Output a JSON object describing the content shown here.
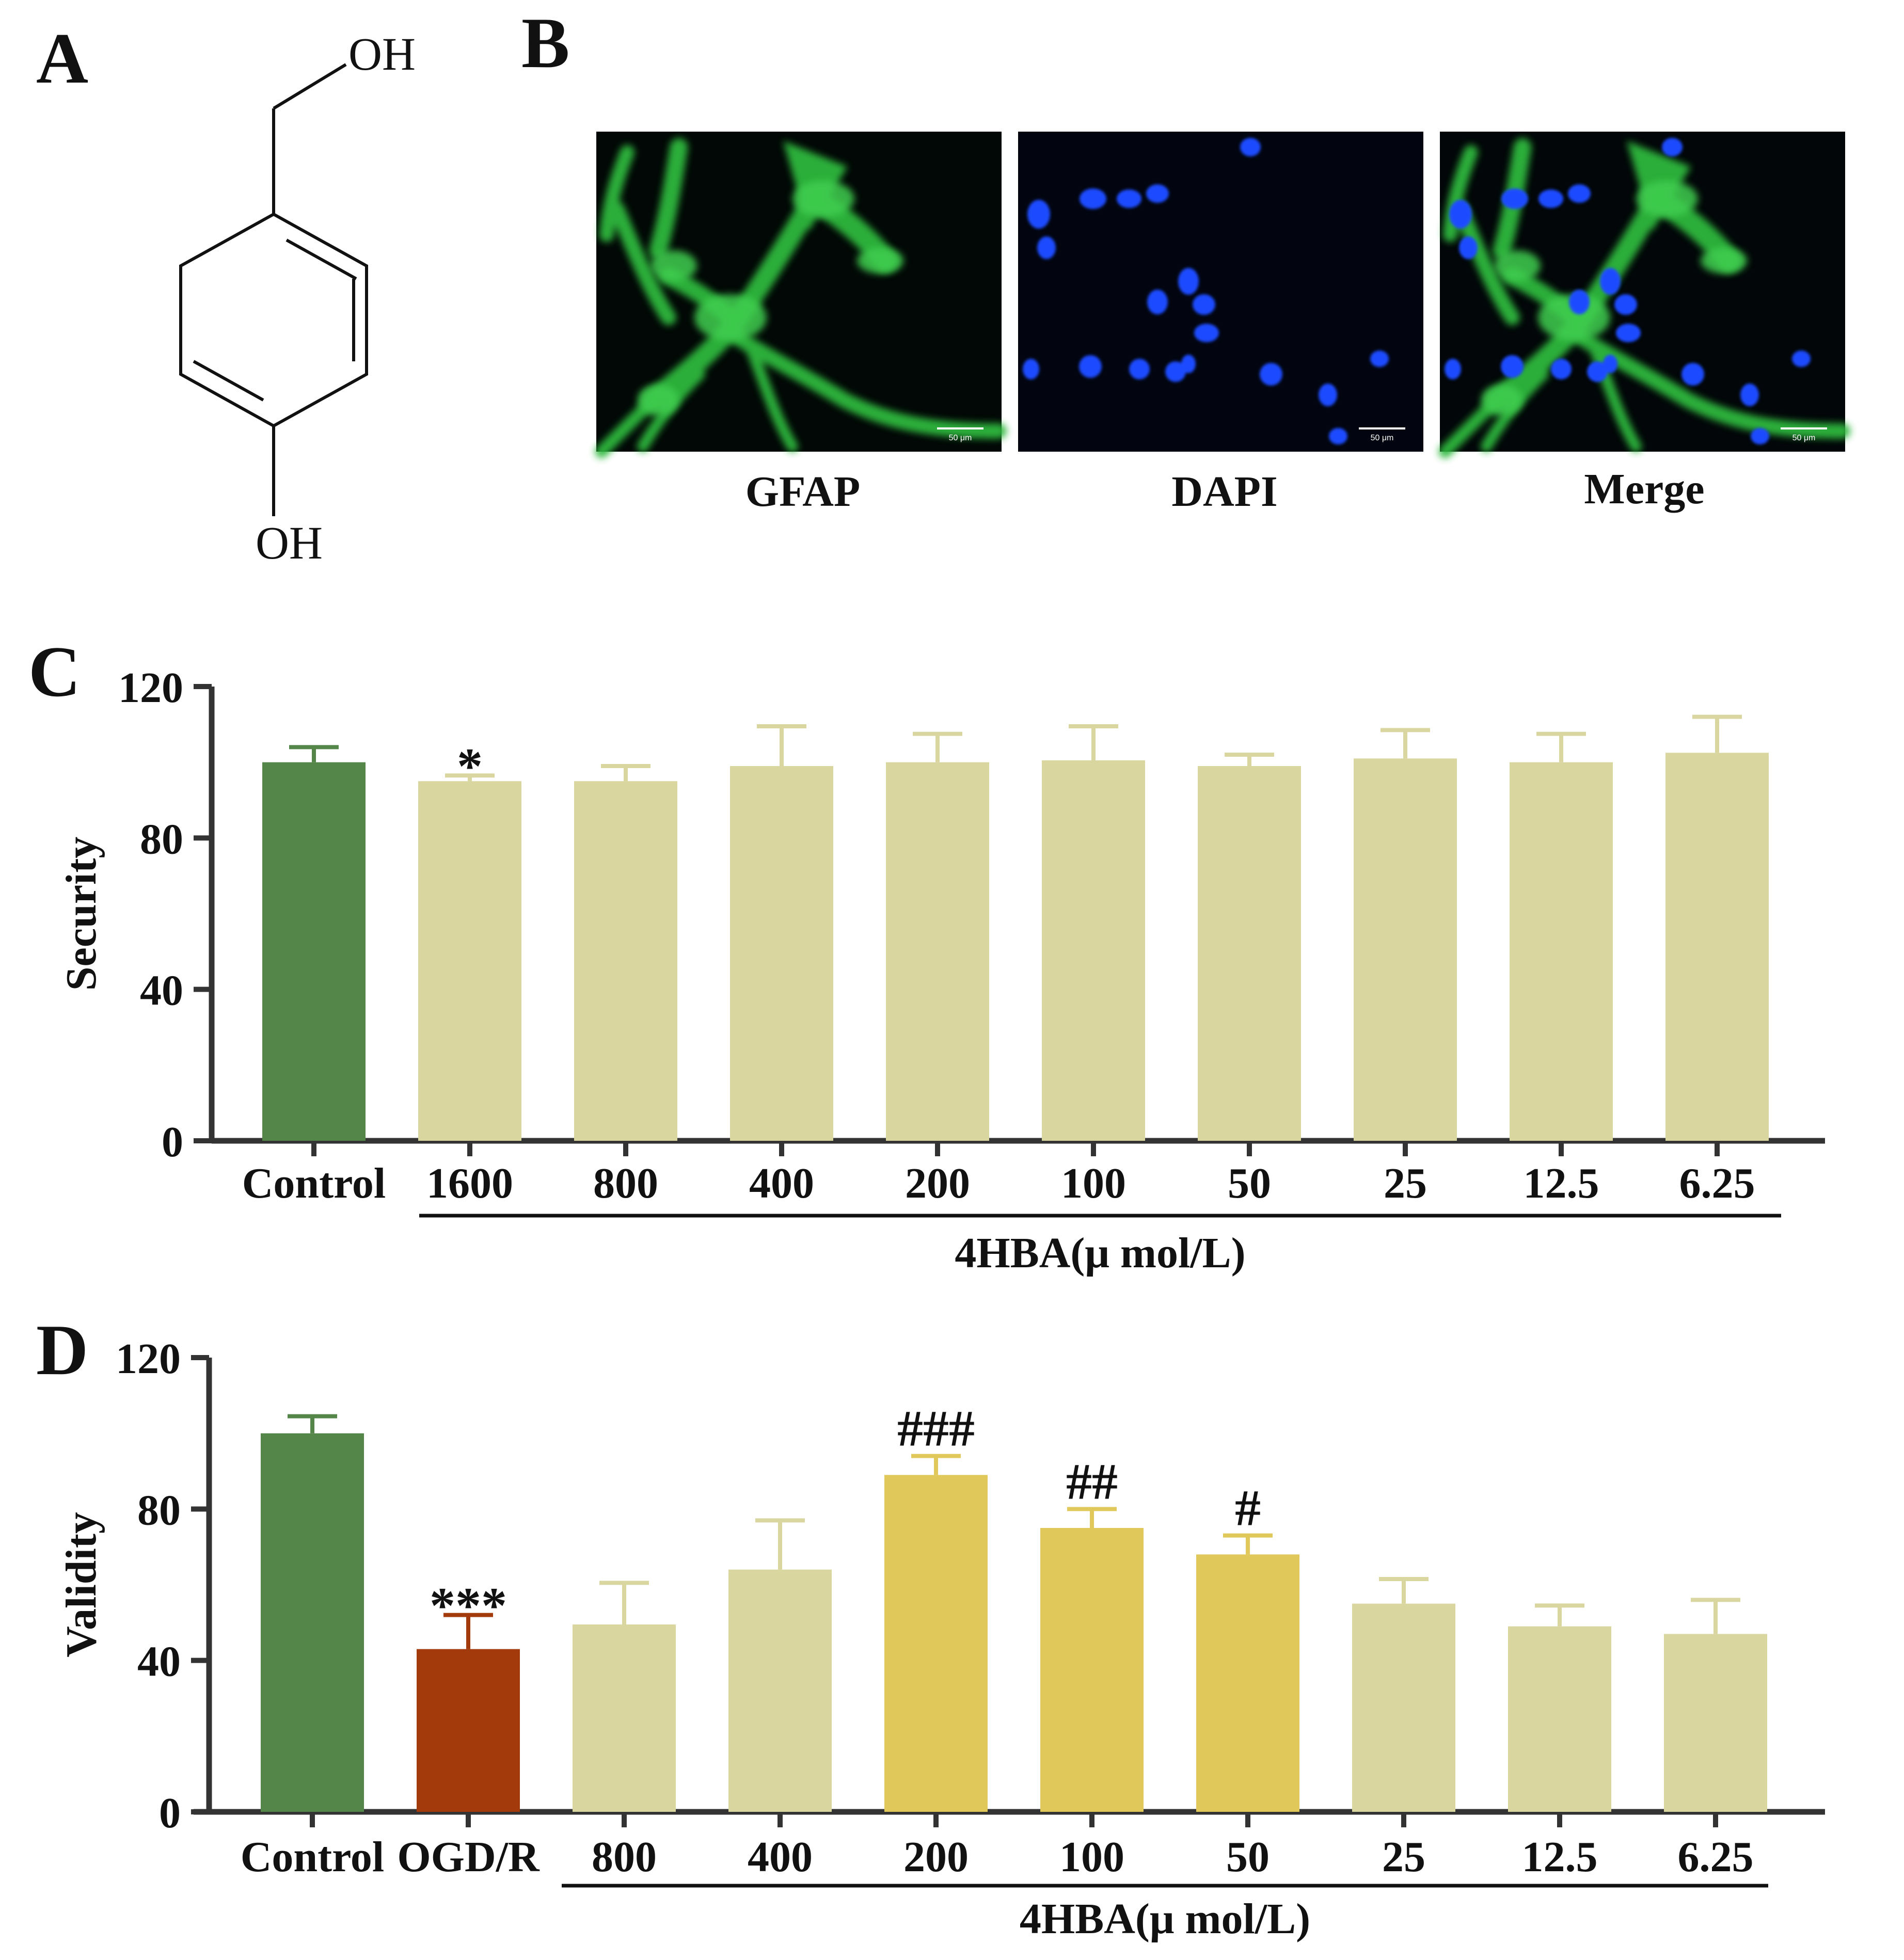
{
  "panels": {
    "a": "A",
    "b": "B",
    "c": "C",
    "d": "D"
  },
  "structure": {
    "top_group": "OH",
    "bottom_group": "OH"
  },
  "micrographs": [
    {
      "label": "GFAP",
      "color": "#1a9a3a",
      "scale_bar": "50 μm"
    },
    {
      "label": "DAPI",
      "color": "#1a2fb0",
      "scale_bar": "50 μm"
    },
    {
      "label": "Merge",
      "color": "#1a9a3a",
      "scale_bar": "50 μm"
    }
  ],
  "colors": {
    "control": "#548549",
    "treatment": "#d9d6a0",
    "ogd": "#a33a0c",
    "highlight": "#e0c85a",
    "axis": "#333333"
  },
  "chart_data": [
    {
      "type": "bar",
      "ylabel": "Security",
      "ylim": [
        0,
        120
      ],
      "yticks": [
        "0",
        "40",
        "80",
        "120"
      ],
      "categories": [
        "Control",
        "1600",
        "800",
        "400",
        "200",
        "100",
        "50",
        "25",
        "12.5",
        "6.25"
      ],
      "values": [
        100,
        95,
        95,
        99,
        100,
        100.5,
        99,
        101,
        100,
        102.5
      ],
      "errors": [
        4,
        1.5,
        4,
        10.5,
        7.5,
        9,
        3,
        7.5,
        7.5,
        9.5
      ],
      "bar_colors": [
        "control",
        "treatment",
        "treatment",
        "treatment",
        "treatment",
        "treatment",
        "treatment",
        "treatment",
        "treatment",
        "treatment"
      ],
      "annotations": [
        "",
        "*",
        "",
        "",
        "",
        "",
        "",
        "",
        "",
        ""
      ],
      "group_label": "4HBA(μ mol/L)",
      "group_start": 1,
      "group_end": 9
    },
    {
      "type": "bar",
      "ylabel": "Validity",
      "ylim": [
        0,
        120
      ],
      "yticks": [
        "0",
        "40",
        "80",
        "120"
      ],
      "categories": [
        "Control",
        "OGD/R",
        "800",
        "400",
        "200",
        "100",
        "50",
        "25",
        "12.5",
        "6.25"
      ],
      "values": [
        100,
        43,
        49.5,
        64,
        89,
        75,
        68,
        55,
        49,
        47
      ],
      "errors": [
        4.5,
        9,
        11,
        13,
        5,
        5,
        5,
        6.5,
        5.5,
        9
      ],
      "bar_colors": [
        "control",
        "ogd",
        "treatment",
        "treatment",
        "highlight",
        "highlight",
        "highlight",
        "treatment",
        "treatment",
        "treatment"
      ],
      "annotations": [
        "",
        "***",
        "",
        "",
        "###",
        "##",
        "#",
        "",
        "",
        ""
      ],
      "group_label": "4HBA(μ mol/L)",
      "group_start": 2,
      "group_end": 9
    }
  ]
}
